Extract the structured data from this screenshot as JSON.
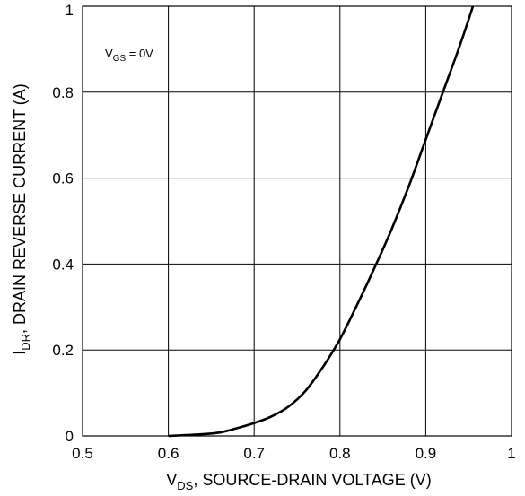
{
  "chart_data": {
    "type": "line",
    "title": "",
    "xlabel": {
      "main": "V",
      "sub": "DS",
      "rest": ", SOURCE-DRAIN VOLTAGE (V)"
    },
    "ylabel": {
      "main": "I",
      "sub": "DR",
      "rest": ", DRAIN REVERSE CURRENT (A)"
    },
    "xlim": [
      0.5,
      1.0
    ],
    "ylim": [
      0,
      1.0
    ],
    "xticks": [
      {
        "v": 0.5,
        "label": "0.5"
      },
      {
        "v": 0.6,
        "label": "0.6"
      },
      {
        "v": 0.7,
        "label": "0.7"
      },
      {
        "v": 0.8,
        "label": "0.8"
      },
      {
        "v": 0.9,
        "label": "0.9"
      },
      {
        "v": 1.0,
        "label": "1"
      }
    ],
    "yticks": [
      {
        "v": 0,
        "label": "0"
      },
      {
        "v": 0.2,
        "label": "0.2"
      },
      {
        "v": 0.4,
        "label": "0.4"
      },
      {
        "v": 0.6,
        "label": "0.6"
      },
      {
        "v": 0.8,
        "label": "0.8"
      },
      {
        "v": 1.0,
        "label": "1"
      }
    ],
    "grid": true,
    "annotation": {
      "main": "V",
      "sub": "GS",
      "rest": " = 0V"
    },
    "series": [
      {
        "values": [
          {
            "x": 0.6,
            "y": 0.0
          },
          {
            "x": 0.62,
            "y": 0.002
          },
          {
            "x": 0.64,
            "y": 0.004
          },
          {
            "x": 0.66,
            "y": 0.008
          },
          {
            "x": 0.68,
            "y": 0.018
          },
          {
            "x": 0.7,
            "y": 0.03
          },
          {
            "x": 0.72,
            "y": 0.045
          },
          {
            "x": 0.74,
            "y": 0.068
          },
          {
            "x": 0.76,
            "y": 0.105
          },
          {
            "x": 0.78,
            "y": 0.16
          },
          {
            "x": 0.8,
            "y": 0.225
          },
          {
            "x": 0.82,
            "y": 0.305
          },
          {
            "x": 0.84,
            "y": 0.39
          },
          {
            "x": 0.86,
            "y": 0.48
          },
          {
            "x": 0.88,
            "y": 0.58
          },
          {
            "x": 0.9,
            "y": 0.69
          },
          {
            "x": 0.92,
            "y": 0.8
          },
          {
            "x": 0.94,
            "y": 0.91
          },
          {
            "x": 0.955,
            "y": 1.0
          }
        ]
      }
    ]
  }
}
